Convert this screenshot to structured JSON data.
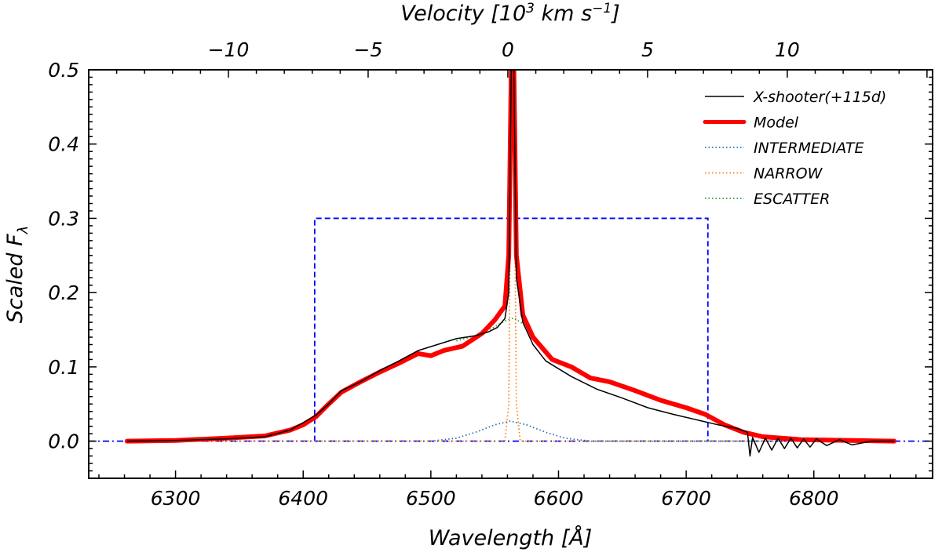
{
  "chart_data": {
    "type": "line",
    "xlabel": "Wavelength [Å]",
    "ylabel_main": "Scaled F",
    "ylabel_sub": "λ",
    "top_xlabel_main": "Velocity [10",
    "top_xlabel_exp": "3",
    "top_xlabel_tail": " km s",
    "top_xlabel_exp2": "−1",
    "top_xlabel_end": "]",
    "xlim": [
      6232,
      6893
    ],
    "ylim": [
      -0.05,
      0.5
    ],
    "top_xlim": [
      -15.0,
      15.2
    ],
    "x_ticks": [
      6300,
      6400,
      6500,
      6600,
      6700,
      6800
    ],
    "x_tick_labels": [
      "6300",
      "6400",
      "6500",
      "6600",
      "6700",
      "6800"
    ],
    "y_ticks": [
      0.0,
      0.1,
      0.2,
      0.3,
      0.4,
      0.5
    ],
    "y_tick_labels": [
      "0.0",
      "0.1",
      "0.2",
      "0.3",
      "0.4",
      "0.5"
    ],
    "top_ticks": [
      -10,
      -5,
      0,
      5,
      10
    ],
    "top_tick_labels": [
      "−10",
      "−5",
      "0",
      "5",
      "10"
    ],
    "legend_position": "top-right",
    "grid": false,
    "series": [
      {
        "name": "X-shooter(+115d)",
        "color": "#000000",
        "style": "solid",
        "points": [
          [
            6262,
            0.0
          ],
          [
            6300,
            0.001
          ],
          [
            6340,
            0.003
          ],
          [
            6370,
            0.006
          ],
          [
            6390,
            0.015
          ],
          [
            6400,
            0.025
          ],
          [
            6410,
            0.035
          ],
          [
            6420,
            0.05
          ],
          [
            6430,
            0.068
          ],
          [
            6445,
            0.08
          ],
          [
            6460,
            0.095
          ],
          [
            6475,
            0.108
          ],
          [
            6490,
            0.122
          ],
          [
            6505,
            0.13
          ],
          [
            6520,
            0.138
          ],
          [
            6535,
            0.142
          ],
          [
            6545,
            0.147
          ],
          [
            6552,
            0.153
          ],
          [
            6558,
            0.165
          ],
          [
            6561,
            0.2
          ],
          [
            6563,
            0.5
          ],
          [
            6565,
            0.5
          ],
          [
            6567,
            0.22
          ],
          [
            6572,
            0.16
          ],
          [
            6580,
            0.13
          ],
          [
            6590,
            0.108
          ],
          [
            6610,
            0.087
          ],
          [
            6630,
            0.07
          ],
          [
            6650,
            0.058
          ],
          [
            6670,
            0.045
          ],
          [
            6690,
            0.036
          ],
          [
            6710,
            0.028
          ],
          [
            6725,
            0.022
          ],
          [
            6740,
            0.017
          ],
          [
            6748,
            0.012
          ],
          [
            6750,
            -0.02
          ],
          [
            6752,
            0.005
          ],
          [
            6757,
            -0.015
          ],
          [
            6762,
            0.004
          ],
          [
            6767,
            -0.012
          ],
          [
            6772,
            0.004
          ],
          [
            6777,
            -0.01
          ],
          [
            6782,
            0.004
          ],
          [
            6787,
            -0.009
          ],
          [
            6792,
            0.003
          ],
          [
            6797,
            -0.008
          ],
          [
            6802,
            0.003
          ],
          [
            6810,
            -0.006
          ],
          [
            6820,
            0.002
          ],
          [
            6830,
            -0.005
          ],
          [
            6845,
            0.0
          ],
          [
            6863,
            0.0
          ]
        ]
      },
      {
        "name": "Model",
        "color": "#ff0000",
        "style": "thick",
        "points": [
          [
            6262,
            0.0
          ],
          [
            6300,
            0.001
          ],
          [
            6340,
            0.004
          ],
          [
            6370,
            0.007
          ],
          [
            6390,
            0.015
          ],
          [
            6400,
            0.022
          ],
          [
            6410,
            0.033
          ],
          [
            6420,
            0.05
          ],
          [
            6430,
            0.066
          ],
          [
            6445,
            0.08
          ],
          [
            6460,
            0.093
          ],
          [
            6475,
            0.105
          ],
          [
            6490,
            0.118
          ],
          [
            6500,
            0.115
          ],
          [
            6510,
            0.122
          ],
          [
            6525,
            0.128
          ],
          [
            6540,
            0.145
          ],
          [
            6550,
            0.163
          ],
          [
            6558,
            0.182
          ],
          [
            6561,
            0.25
          ],
          [
            6563,
            0.5
          ],
          [
            6565,
            0.5
          ],
          [
            6567,
            0.25
          ],
          [
            6572,
            0.17
          ],
          [
            6580,
            0.14
          ],
          [
            6595,
            0.11
          ],
          [
            6610,
            0.1
          ],
          [
            6625,
            0.085
          ],
          [
            6640,
            0.08
          ],
          [
            6660,
            0.068
          ],
          [
            6680,
            0.055
          ],
          [
            6700,
            0.045
          ],
          [
            6715,
            0.036
          ],
          [
            6730,
            0.022
          ],
          [
            6745,
            0.012
          ],
          [
            6760,
            0.006
          ],
          [
            6790,
            0.002
          ],
          [
            6863,
            0.0
          ]
        ]
      },
      {
        "name": "INTERMEDIATE",
        "color": "#1f77b4",
        "style": "dotted",
        "points": [
          [
            6262,
            0.0
          ],
          [
            6500,
            0.0
          ],
          [
            6520,
            0.004
          ],
          [
            6535,
            0.012
          ],
          [
            6550,
            0.022
          ],
          [
            6562,
            0.027
          ],
          [
            6575,
            0.022
          ],
          [
            6590,
            0.012
          ],
          [
            6605,
            0.004
          ],
          [
            6625,
            0.0
          ],
          [
            6863,
            0.0
          ]
        ]
      },
      {
        "name": "NARROW",
        "color": "#ff7f0e",
        "style": "dotted",
        "points": [
          [
            6262,
            0.0
          ],
          [
            6558,
            0.0
          ],
          [
            6561,
            0.05
          ],
          [
            6563,
            0.45
          ],
          [
            6564,
            0.5
          ],
          [
            6565,
            0.45
          ],
          [
            6567,
            0.05
          ],
          [
            6570,
            0.0
          ],
          [
            6863,
            0.0
          ]
        ]
      },
      {
        "name": "ESCATTER",
        "color": "#2ca02c",
        "style": "dotted",
        "points": [
          [
            6520,
            0.135
          ],
          [
            6535,
            0.142
          ],
          [
            6548,
            0.152
          ],
          [
            6558,
            0.162
          ],
          [
            6565,
            0.166
          ],
          [
            6572,
            0.158
          ],
          [
            6580,
            0.145
          ]
        ]
      }
    ],
    "box": {
      "color": "#0000ff",
      "style": "dashed",
      "x": [
        6409,
        6717
      ],
      "y": [
        0.0,
        0.3
      ]
    },
    "baseline": {
      "color": "#0000ff",
      "style": "dashdot",
      "y": 0.0
    }
  }
}
